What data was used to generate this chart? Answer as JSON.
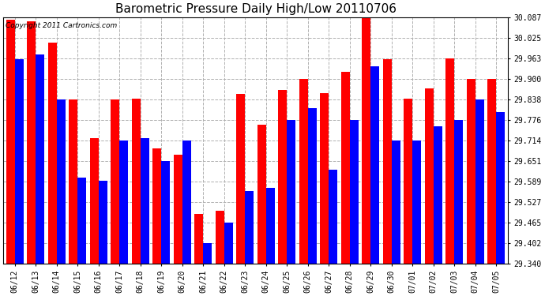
{
  "title": "Barometric Pressure Daily High/Low 20110706",
  "copyright": "Copyright 2011 Cartronics.com",
  "dates": [
    "06/12",
    "06/13",
    "06/14",
    "06/15",
    "06/16",
    "06/17",
    "06/18",
    "06/19",
    "06/20",
    "06/21",
    "06/22",
    "06/23",
    "06/24",
    "06/25",
    "06/26",
    "06/27",
    "06/28",
    "06/29",
    "06/30",
    "07/01",
    "07/02",
    "07/03",
    "07/04",
    "07/05"
  ],
  "highs": [
    30.08,
    30.075,
    30.01,
    29.838,
    29.72,
    29.838,
    29.84,
    29.69,
    29.67,
    29.49,
    29.5,
    29.855,
    29.76,
    29.865,
    29.9,
    29.856,
    29.92,
    30.087,
    29.96,
    29.84,
    29.87,
    29.963,
    29.9,
    29.9
  ],
  "lows": [
    29.96,
    29.975,
    29.838,
    29.6,
    29.59,
    29.714,
    29.72,
    29.651,
    29.714,
    29.402,
    29.465,
    29.56,
    29.57,
    29.776,
    29.81,
    29.624,
    29.776,
    29.938,
    29.714,
    29.714,
    29.757,
    29.776,
    29.838,
    29.8
  ],
  "ymin": 29.34,
  "ymax": 30.087,
  "yticks": [
    29.34,
    29.402,
    29.465,
    29.527,
    29.589,
    29.651,
    29.714,
    29.776,
    29.838,
    29.9,
    29.963,
    30.025,
    30.087
  ],
  "bar_width": 0.42,
  "high_color": "#ff0000",
  "low_color": "#0000ff",
  "bg_color": "#ffffff",
  "grid_color": "#b0b0b0",
  "title_fontsize": 11
}
